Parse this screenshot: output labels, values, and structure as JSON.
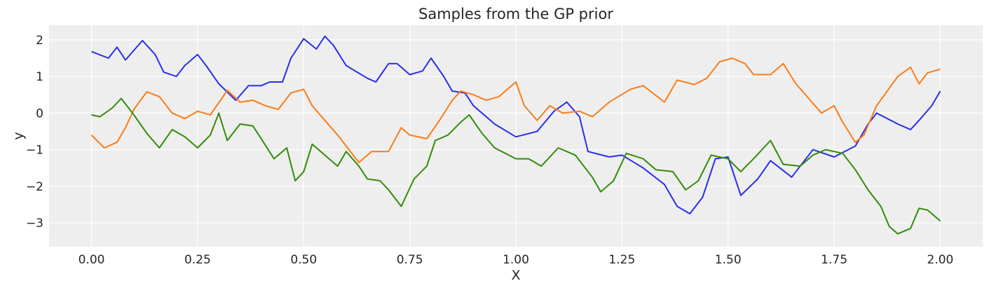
{
  "chart_data": {
    "type": "line",
    "title": "Samples from the GP prior",
    "xlabel": "X",
    "ylabel": "y",
    "xlim": [
      -0.1,
      2.1
    ],
    "ylim": [
      -3.65,
      2.4
    ],
    "xticks": [
      0.0,
      0.25,
      0.5,
      0.75,
      1.0,
      1.25,
      1.5,
      1.75,
      2.0
    ],
    "xtick_labels": [
      "0.00",
      "0.25",
      "0.50",
      "0.75",
      "1.00",
      "1.25",
      "1.50",
      "1.75",
      "2.00"
    ],
    "yticks": [
      -3,
      -2,
      -1,
      0,
      1,
      2
    ],
    "ytick_labels": [
      "−3",
      "−2",
      "−1",
      "0",
      "1",
      "2"
    ],
    "grid": true,
    "background": "#eeeeee",
    "series": [
      {
        "color": "#2a2eec",
        "points": [
          [
            0.0,
            1.68
          ],
          [
            0.04,
            1.5
          ],
          [
            0.06,
            1.8
          ],
          [
            0.08,
            1.45
          ],
          [
            0.12,
            1.98
          ],
          [
            0.15,
            1.6
          ],
          [
            0.17,
            1.12
          ],
          [
            0.2,
            1.0
          ],
          [
            0.22,
            1.3
          ],
          [
            0.25,
            1.6
          ],
          [
            0.27,
            1.3
          ],
          [
            0.3,
            0.8
          ],
          [
            0.34,
            0.35
          ],
          [
            0.37,
            0.75
          ],
          [
            0.4,
            0.75
          ],
          [
            0.42,
            0.85
          ],
          [
            0.45,
            0.85
          ],
          [
            0.47,
            1.5
          ],
          [
            0.5,
            2.03
          ],
          [
            0.53,
            1.75
          ],
          [
            0.55,
            2.1
          ],
          [
            0.57,
            1.85
          ],
          [
            0.6,
            1.3
          ],
          [
            0.65,
            0.95
          ],
          [
            0.67,
            0.85
          ],
          [
            0.7,
            1.35
          ],
          [
            0.72,
            1.35
          ],
          [
            0.75,
            1.05
          ],
          [
            0.78,
            1.15
          ],
          [
            0.8,
            1.5
          ],
          [
            0.83,
            1.0
          ],
          [
            0.85,
            0.6
          ],
          [
            0.88,
            0.55
          ],
          [
            0.9,
            0.2
          ],
          [
            0.95,
            -0.3
          ],
          [
            1.0,
            -0.65
          ],
          [
            1.05,
            -0.5
          ],
          [
            1.09,
            0.05
          ],
          [
            1.12,
            0.3
          ],
          [
            1.15,
            -0.1
          ],
          [
            1.17,
            -1.05
          ],
          [
            1.22,
            -1.2
          ],
          [
            1.25,
            -1.15
          ],
          [
            1.3,
            -1.5
          ],
          [
            1.35,
            -1.95
          ],
          [
            1.38,
            -2.55
          ],
          [
            1.41,
            -2.75
          ],
          [
            1.44,
            -2.3
          ],
          [
            1.47,
            -1.25
          ],
          [
            1.5,
            -1.2
          ],
          [
            1.53,
            -2.25
          ],
          [
            1.57,
            -1.8
          ],
          [
            1.6,
            -1.3
          ],
          [
            1.65,
            -1.75
          ],
          [
            1.7,
            -1.0
          ],
          [
            1.75,
            -1.2
          ],
          [
            1.8,
            -0.9
          ],
          [
            1.83,
            -0.3
          ],
          [
            1.85,
            0.0
          ],
          [
            1.9,
            -0.3
          ],
          [
            1.93,
            -0.45
          ],
          [
            1.95,
            -0.2
          ],
          [
            1.98,
            0.2
          ],
          [
            2.0,
            0.6
          ]
        ]
      },
      {
        "color": "#fa7c17",
        "points": [
          [
            0.0,
            -0.6
          ],
          [
            0.03,
            -0.95
          ],
          [
            0.06,
            -0.8
          ],
          [
            0.08,
            -0.4
          ],
          [
            0.1,
            0.1
          ],
          [
            0.13,
            0.58
          ],
          [
            0.16,
            0.45
          ],
          [
            0.19,
            0.0
          ],
          [
            0.22,
            -0.15
          ],
          [
            0.25,
            0.05
          ],
          [
            0.28,
            -0.05
          ],
          [
            0.32,
            0.62
          ],
          [
            0.35,
            0.3
          ],
          [
            0.38,
            0.35
          ],
          [
            0.41,
            0.2
          ],
          [
            0.44,
            0.1
          ],
          [
            0.47,
            0.55
          ],
          [
            0.5,
            0.65
          ],
          [
            0.52,
            0.2
          ],
          [
            0.55,
            -0.2
          ],
          [
            0.58,
            -0.6
          ],
          [
            0.6,
            -0.9
          ],
          [
            0.63,
            -1.35
          ],
          [
            0.66,
            -1.05
          ],
          [
            0.7,
            -1.05
          ],
          [
            0.73,
            -0.4
          ],
          [
            0.75,
            -0.6
          ],
          [
            0.79,
            -0.7
          ],
          [
            0.82,
            -0.2
          ],
          [
            0.85,
            0.35
          ],
          [
            0.87,
            0.6
          ],
          [
            0.9,
            0.5
          ],
          [
            0.93,
            0.35
          ],
          [
            0.96,
            0.45
          ],
          [
            1.0,
            0.85
          ],
          [
            1.02,
            0.2
          ],
          [
            1.05,
            -0.2
          ],
          [
            1.08,
            0.2
          ],
          [
            1.11,
            0.0
          ],
          [
            1.15,
            0.05
          ],
          [
            1.18,
            -0.1
          ],
          [
            1.22,
            0.3
          ],
          [
            1.27,
            0.65
          ],
          [
            1.3,
            0.75
          ],
          [
            1.35,
            0.3
          ],
          [
            1.38,
            0.9
          ],
          [
            1.42,
            0.78
          ],
          [
            1.45,
            0.95
          ],
          [
            1.48,
            1.4
          ],
          [
            1.51,
            1.5
          ],
          [
            1.54,
            1.35
          ],
          [
            1.56,
            1.05
          ],
          [
            1.6,
            1.05
          ],
          [
            1.63,
            1.35
          ],
          [
            1.66,
            0.8
          ],
          [
            1.69,
            0.4
          ],
          [
            1.72,
            0.0
          ],
          [
            1.75,
            0.2
          ],
          [
            1.77,
            -0.25
          ],
          [
            1.8,
            -0.8
          ],
          [
            1.82,
            -0.6
          ],
          [
            1.85,
            0.2
          ],
          [
            1.9,
            1.0
          ],
          [
            1.93,
            1.25
          ],
          [
            1.95,
            0.8
          ],
          [
            1.97,
            1.1
          ],
          [
            2.0,
            1.2
          ]
        ]
      },
      {
        "color": "#328c06",
        "points": [
          [
            0.0,
            -0.05
          ],
          [
            0.02,
            -0.1
          ],
          [
            0.05,
            0.15
          ],
          [
            0.07,
            0.4
          ],
          [
            0.1,
            -0.05
          ],
          [
            0.13,
            -0.55
          ],
          [
            0.16,
            -0.95
          ],
          [
            0.19,
            -0.45
          ],
          [
            0.22,
            -0.65
          ],
          [
            0.25,
            -0.95
          ],
          [
            0.28,
            -0.6
          ],
          [
            0.3,
            0.0
          ],
          [
            0.32,
            -0.75
          ],
          [
            0.35,
            -0.3
          ],
          [
            0.38,
            -0.35
          ],
          [
            0.4,
            -0.7
          ],
          [
            0.43,
            -1.25
          ],
          [
            0.46,
            -0.95
          ],
          [
            0.48,
            -1.85
          ],
          [
            0.5,
            -1.6
          ],
          [
            0.52,
            -0.85
          ],
          [
            0.55,
            -1.15
          ],
          [
            0.58,
            -1.45
          ],
          [
            0.6,
            -1.05
          ],
          [
            0.63,
            -1.45
          ],
          [
            0.65,
            -1.8
          ],
          [
            0.68,
            -1.85
          ],
          [
            0.7,
            -2.1
          ],
          [
            0.73,
            -2.55
          ],
          [
            0.76,
            -1.8
          ],
          [
            0.79,
            -1.45
          ],
          [
            0.81,
            -0.75
          ],
          [
            0.84,
            -0.6
          ],
          [
            0.87,
            -0.25
          ],
          [
            0.89,
            -0.05
          ],
          [
            0.92,
            -0.55
          ],
          [
            0.95,
            -0.95
          ],
          [
            1.0,
            -1.25
          ],
          [
            1.03,
            -1.25
          ],
          [
            1.06,
            -1.45
          ],
          [
            1.1,
            -0.95
          ],
          [
            1.14,
            -1.15
          ],
          [
            1.18,
            -1.75
          ],
          [
            1.2,
            -2.15
          ],
          [
            1.23,
            -1.85
          ],
          [
            1.26,
            -1.1
          ],
          [
            1.3,
            -1.25
          ],
          [
            1.33,
            -1.55
          ],
          [
            1.37,
            -1.6
          ],
          [
            1.4,
            -2.1
          ],
          [
            1.43,
            -1.85
          ],
          [
            1.46,
            -1.15
          ],
          [
            1.5,
            -1.25
          ],
          [
            1.53,
            -1.6
          ],
          [
            1.56,
            -1.25
          ],
          [
            1.6,
            -0.75
          ],
          [
            1.63,
            -1.4
          ],
          [
            1.67,
            -1.45
          ],
          [
            1.7,
            -1.15
          ],
          [
            1.73,
            -1.0
          ],
          [
            1.77,
            -1.1
          ],
          [
            1.8,
            -1.55
          ],
          [
            1.83,
            -2.1
          ],
          [
            1.86,
            -2.55
          ],
          [
            1.88,
            -3.1
          ],
          [
            1.9,
            -3.3
          ],
          [
            1.93,
            -3.15
          ],
          [
            1.95,
            -2.6
          ],
          [
            1.97,
            -2.65
          ],
          [
            2.0,
            -2.95
          ]
        ]
      }
    ]
  }
}
